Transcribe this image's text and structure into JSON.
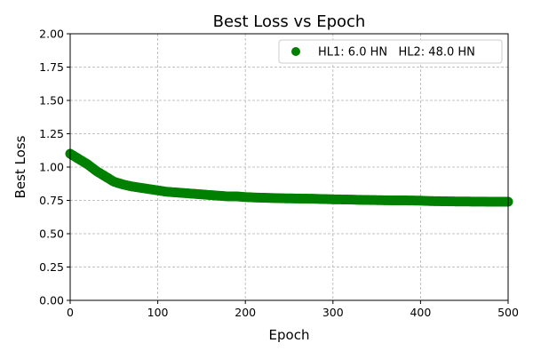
{
  "chart_data": {
    "type": "scatter",
    "title": "Best Loss vs Epoch",
    "xlabel": "Epoch",
    "ylabel": "Best Loss",
    "xlim": [
      0,
      500
    ],
    "ylim": [
      0.0,
      2.0
    ],
    "xticks": [
      "0",
      "100",
      "200",
      "300",
      "400",
      "500"
    ],
    "yticks": [
      "0.00",
      "0.25",
      "0.50",
      "0.75",
      "1.00",
      "1.25",
      "1.50",
      "1.75",
      "2.00"
    ],
    "grid": true,
    "legend_position": "top-right",
    "series": [
      {
        "name": "HL1: 6.0 HN   HL2: 48.0 HN",
        "color": "#008000",
        "points": [
          [
            0,
            1.1
          ],
          [
            10,
            1.06
          ],
          [
            20,
            1.02
          ],
          [
            30,
            0.97
          ],
          [
            40,
            0.93
          ],
          [
            50,
            0.89
          ],
          [
            60,
            0.87
          ],
          [
            70,
            0.855
          ],
          [
            80,
            0.845
          ],
          [
            90,
            0.835
          ],
          [
            100,
            0.825
          ],
          [
            110,
            0.815
          ],
          [
            120,
            0.81
          ],
          [
            130,
            0.805
          ],
          [
            140,
            0.8
          ],
          [
            150,
            0.795
          ],
          [
            160,
            0.79
          ],
          [
            170,
            0.785
          ],
          [
            180,
            0.78
          ],
          [
            190,
            0.78
          ],
          [
            200,
            0.775
          ],
          [
            210,
            0.772
          ],
          [
            220,
            0.77
          ],
          [
            230,
            0.768
          ],
          [
            240,
            0.766
          ],
          [
            250,
            0.765
          ],
          [
            260,
            0.764
          ],
          [
            270,
            0.763
          ],
          [
            280,
            0.762
          ],
          [
            290,
            0.76
          ],
          [
            300,
            0.758
          ],
          [
            310,
            0.757
          ],
          [
            320,
            0.756
          ],
          [
            330,
            0.754
          ],
          [
            340,
            0.753
          ],
          [
            350,
            0.752
          ],
          [
            360,
            0.751
          ],
          [
            370,
            0.75
          ],
          [
            380,
            0.75
          ],
          [
            390,
            0.749
          ],
          [
            400,
            0.748
          ],
          [
            410,
            0.745
          ],
          [
            420,
            0.744
          ],
          [
            430,
            0.743
          ],
          [
            440,
            0.742
          ],
          [
            450,
            0.742
          ],
          [
            460,
            0.741
          ],
          [
            470,
            0.741
          ],
          [
            480,
            0.74
          ],
          [
            490,
            0.74
          ],
          [
            500,
            0.74
          ]
        ]
      }
    ]
  }
}
